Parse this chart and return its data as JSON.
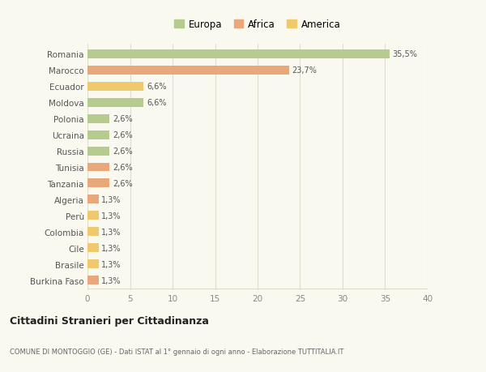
{
  "countries": [
    "Romania",
    "Marocco",
    "Ecuador",
    "Moldova",
    "Polonia",
    "Ucraina",
    "Russia",
    "Tunisia",
    "Tanzania",
    "Algeria",
    "Perù",
    "Colombia",
    "Cile",
    "Brasile",
    "Burkina Faso"
  ],
  "values": [
    35.5,
    23.7,
    6.6,
    6.6,
    2.6,
    2.6,
    2.6,
    2.6,
    2.6,
    1.3,
    1.3,
    1.3,
    1.3,
    1.3,
    1.3
  ],
  "labels": [
    "35,5%",
    "23,7%",
    "6,6%",
    "6,6%",
    "2,6%",
    "2,6%",
    "2,6%",
    "2,6%",
    "2,6%",
    "1,3%",
    "1,3%",
    "1,3%",
    "1,3%",
    "1,3%",
    "1,3%"
  ],
  "continents": [
    "Europa",
    "Africa",
    "America",
    "Europa",
    "Europa",
    "Europa",
    "Europa",
    "Africa",
    "Africa",
    "Africa",
    "America",
    "America",
    "America",
    "America",
    "Africa"
  ],
  "colors": {
    "Europa": "#b5cc8e",
    "Africa": "#e8a87c",
    "America": "#f0c96e"
  },
  "title": "Cittadini Stranieri per Cittadinanza",
  "subtitle": "COMUNE DI MONTOGGIO (GE) - Dati ISTAT al 1° gennaio di ogni anno - Elaborazione TUTTITALIA.IT",
  "xlim": [
    0,
    40
  ],
  "xticks": [
    0,
    5,
    10,
    15,
    20,
    25,
    30,
    35,
    40
  ],
  "background_color": "#f9f9f0",
  "grid_color": "#ddddcc",
  "bar_height": 0.55
}
